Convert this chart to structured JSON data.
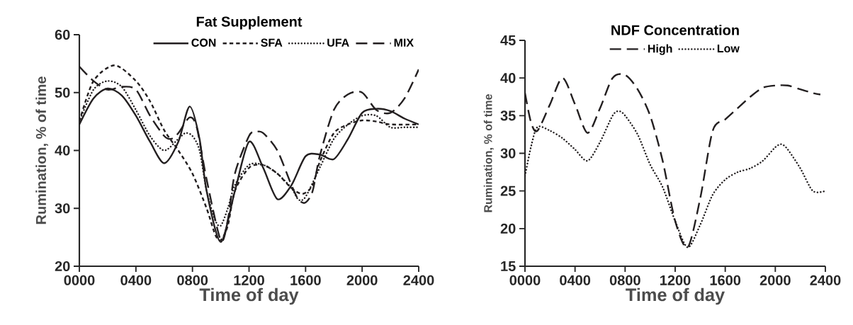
{
  "chart_data": [
    {
      "type": "line",
      "title": "Fat Supplement",
      "xlabel": "Time of day",
      "ylabel": "Rumination, % of time",
      "xlim": [
        0,
        2400
      ],
      "ylim": [
        20,
        60
      ],
      "xticks": [
        {
          "value": 0,
          "label": "0000"
        },
        {
          "value": 400,
          "label": "0400"
        },
        {
          "value": 800,
          "label": "0800"
        },
        {
          "value": 1200,
          "label": "1200"
        },
        {
          "value": 1600,
          "label": "1600"
        },
        {
          "value": 2000,
          "label": "2000"
        },
        {
          "value": 2400,
          "label": "2400"
        }
      ],
      "yticks": [
        20,
        30,
        40,
        50,
        60
      ],
      "legend": "top right",
      "grid": false,
      "marker": "none",
      "series": [
        {
          "name": "CON",
          "color": "#231f20",
          "line_style": "solid",
          "x": [
            0,
            100,
            200,
            300,
            400,
            500,
            600,
            700,
            780,
            850,
            900,
            1000,
            1100,
            1200,
            1300,
            1400,
            1500,
            1600,
            1700,
            1800,
            1900,
            2000,
            2100,
            2200,
            2300,
            2400
          ],
          "values": [
            44.5,
            49,
            50.7,
            49.5,
            46,
            41.5,
            37.8,
            41.5,
            47.6,
            42,
            33,
            24.2,
            33,
            41.5,
            37,
            31.6,
            34,
            39,
            39.3,
            38.5,
            42,
            46.5,
            47.2,
            46.8,
            45.5,
            44.5
          ]
        },
        {
          "name": "SFA",
          "color": "#231f20",
          "line_style": "dashed",
          "x": [
            0,
            100,
            250,
            400,
            500,
            600,
            700,
            800,
            900,
            960,
            1000,
            1050,
            1100,
            1200,
            1300,
            1400,
            1500,
            1580,
            1650,
            1700,
            1800,
            1900,
            2000,
            2100,
            2200,
            2400
          ],
          "values": [
            45,
            52,
            54.7,
            52,
            48.5,
            43.5,
            40,
            36,
            30,
            25.5,
            24.5,
            27,
            33,
            37,
            37.5,
            36,
            33.5,
            32.5,
            34,
            38,
            43,
            44.5,
            45.2,
            45,
            44.5,
            44.5
          ]
        },
        {
          "name": "UFA",
          "color": "#231f20",
          "line_style": "dotted",
          "x": [
            0,
            100,
            200,
            300,
            400,
            500,
            600,
            700,
            750,
            800,
            850,
            900,
            960,
            1000,
            1050,
            1100,
            1200,
            1300,
            1400,
            1500,
            1550,
            1600,
            1700,
            1800,
            1900,
            2000,
            2100,
            2200,
            2300,
            2400
          ],
          "values": [
            45,
            50.5,
            52,
            51,
            47,
            42.5,
            40,
            42,
            43,
            42.5,
            40,
            33,
            28,
            27,
            30,
            34,
            37.5,
            37.5,
            36,
            33.5,
            31.5,
            32,
            37,
            42,
            44.5,
            46,
            46,
            44,
            44,
            44
          ]
        },
        {
          "name": "MIX",
          "color": "#231f20",
          "line_style": "long dashed",
          "x": [
            0,
            100,
            200,
            300,
            400,
            500,
            600,
            650,
            700,
            780,
            830,
            900,
            1000,
            1050,
            1100,
            1200,
            1250,
            1300,
            1400,
            1500,
            1550,
            1600,
            1650,
            1700,
            1800,
            1900,
            2000,
            2100,
            2200,
            2300,
            2400
          ],
          "values": [
            54.5,
            52,
            50.5,
            51,
            50.5,
            46,
            42.5,
            42,
            43,
            45.7,
            44,
            35,
            24.5,
            28,
            36,
            42.5,
            43.2,
            43,
            40,
            34,
            31.5,
            31,
            33,
            39,
            47,
            49.7,
            50,
            47,
            46.5,
            49,
            54
          ]
        }
      ]
    },
    {
      "type": "line",
      "title": "NDF Concentration",
      "xlabel": "Time of day",
      "ylabel": "Rumination, % of time",
      "xlim": [
        0,
        2400
      ],
      "ylim": [
        15,
        45
      ],
      "xticks": [
        {
          "value": 0,
          "label": "0000"
        },
        {
          "value": 400,
          "label": "0400"
        },
        {
          "value": 800,
          "label": "0800"
        },
        {
          "value": 1200,
          "label": "1200"
        },
        {
          "value": 1600,
          "label": "1600"
        },
        {
          "value": 2000,
          "label": "2000"
        },
        {
          "value": 2400,
          "label": "2400"
        }
      ],
      "yticks": [
        15,
        20,
        25,
        30,
        35,
        40,
        45
      ],
      "legend": "top",
      "grid": false,
      "marker": "none",
      "series": [
        {
          "name": "High",
          "color": "#231f20",
          "line_style": "long dashed",
          "x": [
            0,
            50,
            100,
            200,
            300,
            400,
            500,
            600,
            700,
            800,
            900,
            1000,
            1100,
            1200,
            1300,
            1400,
            1500,
            1600,
            1700,
            1800,
            1900,
            2000,
            2100,
            2200,
            2300,
            2360
          ],
          "values": [
            38,
            34,
            33,
            36.5,
            40,
            36.5,
            32.7,
            36,
            40,
            40.4,
            38.5,
            35,
            29,
            21,
            17.5,
            24,
            33,
            34.5,
            36,
            37.5,
            38.7,
            39,
            39,
            38.5,
            38,
            37.8
          ]
        },
        {
          "name": "Low",
          "color": "#231f20",
          "line_style": "dotted",
          "x": [
            0,
            50,
            100,
            200,
            300,
            400,
            500,
            600,
            700,
            750,
            800,
            900,
            1000,
            1100,
            1200,
            1300,
            1400,
            1500,
            1600,
            1700,
            1800,
            1900,
            2000,
            2050,
            2100,
            2200,
            2300,
            2400
          ],
          "values": [
            27,
            31,
            33.5,
            33,
            32,
            30.5,
            29,
            31.5,
            35,
            35.6,
            35,
            32.5,
            28.5,
            25.5,
            21,
            17.5,
            20.5,
            24.5,
            26.5,
            27.5,
            28,
            29,
            30.8,
            31.2,
            30.5,
            28,
            25,
            25
          ]
        }
      ]
    }
  ]
}
